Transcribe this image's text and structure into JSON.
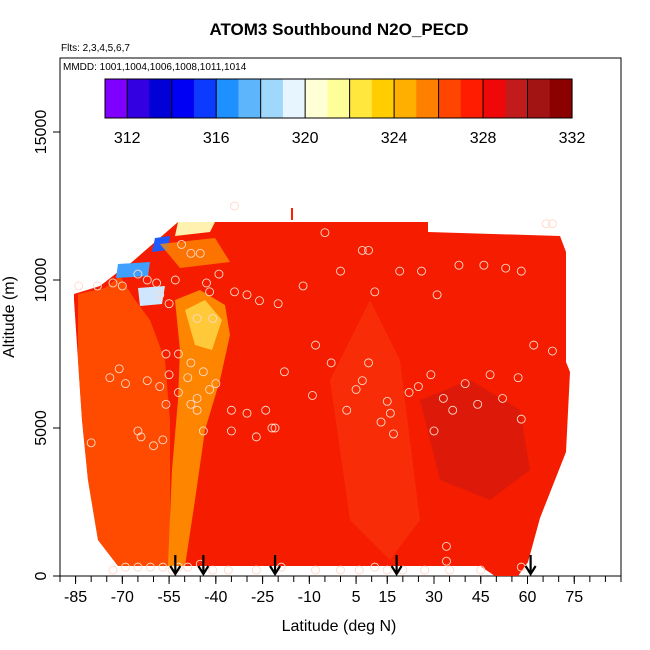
{
  "chart_data": {
    "type": "heatmap",
    "title": "ATOM3 Southbound N2O_PECD",
    "flights_label": "Flts: 2,3,4,5,6,7",
    "mmdd_label": "MMDD: 1001,1004,1006,1008,1011,1014",
    "xlabel": "Latitude (deg N)",
    "ylabel": "Altitude (m)",
    "xlim": [
      -90,
      90
    ],
    "ylim": [
      0,
      17500
    ],
    "x_ticks": [
      -85,
      -70,
      -55,
      -40,
      -25,
      -10,
      5,
      15,
      30,
      45,
      60,
      75
    ],
    "y_ticks": [
      0,
      5000,
      10000,
      15000
    ],
    "colorbar": {
      "range": [
        311,
        332
      ],
      "ticks": [
        312,
        316,
        320,
        324,
        328,
        332
      ],
      "colors": [
        "#7f00ff",
        "#0000cd",
        "#0000ff",
        "#1e90ff",
        "#87cefa",
        "#ffffff",
        "#ffff99",
        "#ffd700",
        "#ffa500",
        "#ff4500",
        "#ff0000",
        "#b22222",
        "#8b0000"
      ]
    },
    "arrows_latitude": [
      -53,
      -44,
      -21,
      18,
      61
    ],
    "sample_points": [
      [
        -71,
        7000
      ],
      [
        -74,
        6700
      ],
      [
        -69,
        6500
      ],
      [
        -62,
        6600
      ],
      [
        -58,
        6400
      ],
      [
        -56,
        7500
      ],
      [
        -55,
        6800
      ],
      [
        -52,
        7500
      ],
      [
        -52,
        6200
      ],
      [
        -49,
        6700
      ],
      [
        -48,
        7200
      ],
      [
        -46,
        6000
      ],
      [
        -46,
        5600
      ],
      [
        -44,
        6900
      ],
      [
        -42,
        6300
      ],
      [
        -40,
        6500
      ],
      [
        -35,
        5600
      ],
      [
        -30,
        5500
      ],
      [
        -24,
        5600
      ],
      [
        -22,
        5000
      ],
      [
        -18,
        6900
      ],
      [
        -9,
        6100
      ],
      [
        -3,
        7200
      ],
      [
        2,
        5600
      ],
      [
        5,
        6300
      ],
      [
        7,
        6600
      ],
      [
        9,
        7200
      ],
      [
        13,
        5200
      ],
      [
        15,
        5900
      ],
      [
        16,
        5500
      ],
      [
        22,
        6200
      ],
      [
        25,
        6400
      ],
      [
        29,
        6800
      ],
      [
        33,
        6000
      ],
      [
        36,
        5600
      ],
      [
        40,
        6500
      ],
      [
        44,
        5800
      ],
      [
        48,
        6800
      ],
      [
        52,
        6000
      ],
      [
        57,
        6700
      ],
      [
        58,
        5300
      ],
      [
        62,
        7800
      ],
      [
        -65,
        4900
      ],
      [
        -64,
        4700
      ],
      [
        -60,
        4400
      ],
      [
        -57,
        4600
      ],
      [
        -56,
        5800
      ],
      [
        -48,
        5800
      ],
      [
        -44,
        4900
      ],
      [
        -35,
        4900
      ],
      [
        -27,
        4700
      ],
      [
        -21,
        5000
      ],
      [
        17,
        4800
      ],
      [
        30,
        4900
      ],
      [
        -80,
        4500
      ],
      [
        -84,
        9800
      ],
      [
        -78,
        9800
      ],
      [
        -73,
        9900
      ],
      [
        -70,
        9800
      ],
      [
        -65,
        10200
      ],
      [
        -62,
        10000
      ],
      [
        -59,
        9900
      ],
      [
        -58,
        9500
      ],
      [
        -55,
        9200
      ],
      [
        -53,
        10000
      ],
      [
        -51,
        11200
      ],
      [
        -48,
        10900
      ],
      [
        -45,
        10900
      ],
      [
        -43,
        9900
      ],
      [
        -42,
        9600
      ],
      [
        -39,
        10200
      ],
      [
        -34,
        9600
      ],
      [
        -30,
        9500
      ],
      [
        -26,
        9300
      ],
      [
        -20,
        9200
      ],
      [
        -12,
        9800
      ],
      [
        -8,
        7800
      ],
      [
        -5,
        11600
      ],
      [
        0,
        10300
      ],
      [
        7,
        11000
      ],
      [
        9,
        11000
      ],
      [
        11,
        9600
      ],
      [
        19,
        10300
      ],
      [
        26,
        10300
      ],
      [
        31,
        9500
      ],
      [
        38,
        10500
      ],
      [
        46,
        10500
      ],
      [
        53,
        10400
      ],
      [
        58,
        10300
      ],
      [
        66,
        11900
      ],
      [
        68,
        11900
      ],
      [
        68,
        7600
      ],
      [
        -46,
        8700
      ],
      [
        -41,
        8700
      ],
      [
        -34,
        12500
      ],
      [
        -61,
        300
      ],
      [
        -57,
        300
      ],
      [
        -54,
        200
      ],
      [
        -52,
        300
      ],
      [
        -49,
        300
      ],
      [
        -45,
        400
      ],
      [
        -41,
        200
      ],
      [
        -36,
        200
      ],
      [
        -27,
        200
      ],
      [
        -19,
        300
      ],
      [
        -8,
        200
      ],
      [
        0,
        200
      ],
      [
        6,
        200
      ],
      [
        11,
        300
      ],
      [
        15,
        200
      ],
      [
        20,
        200
      ],
      [
        27,
        200
      ],
      [
        35,
        200
      ],
      [
        34,
        500
      ],
      [
        34,
        1000
      ],
      [
        45,
        200
      ],
      [
        58,
        300
      ],
      [
        -65,
        300
      ],
      [
        -69,
        300
      ],
      [
        -73,
        200
      ]
    ]
  }
}
